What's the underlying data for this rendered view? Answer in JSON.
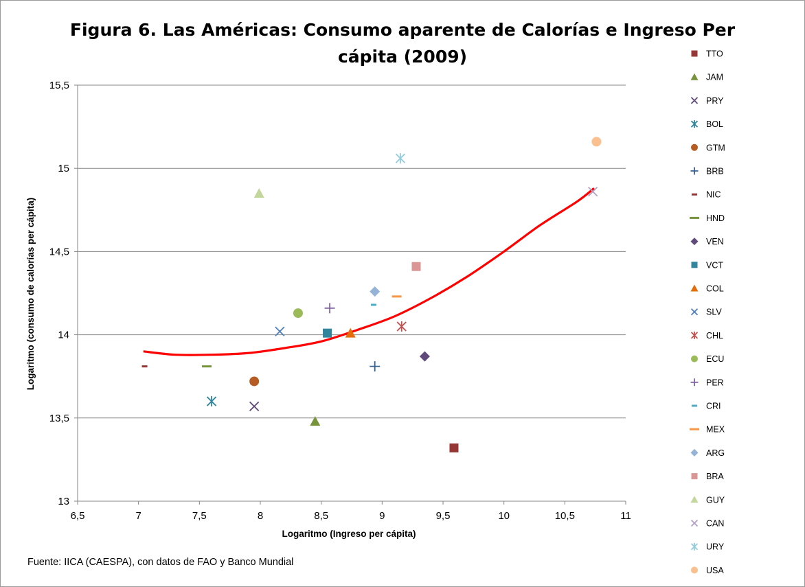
{
  "chart_data": {
    "type": "scatter",
    "title": "Figura 6. Las Américas: Consumo aparente de Calorías e Ingreso Per cápita (2009)",
    "title_lines": [
      "Figura 6. Las Américas: Consumo aparente de Calorías e Ingreso Per",
      "cápita (2009)"
    ],
    "xlabel": "Logaritmo  (Ingreso per cápita)",
    "ylabel": "Logaritmo (consumo de calorías per cápita)",
    "xlim": [
      6.5,
      11
    ],
    "ylim": [
      13,
      15.5
    ],
    "x_ticks": [
      6.5,
      7,
      7.5,
      8,
      8.5,
      9,
      9.5,
      10,
      10.5,
      11
    ],
    "x_tick_labels": [
      "6,5",
      "7",
      "7,5",
      "8",
      "8,5",
      "9",
      "9,5",
      "10",
      "10,5",
      "11"
    ],
    "y_ticks": [
      13,
      13.5,
      14,
      14.5,
      15,
      15.5
    ],
    "y_tick_labels": [
      "13",
      "13,5",
      "14",
      "14,5",
      "15",
      "15,5"
    ],
    "grid": "horizontal",
    "legend_position": "right",
    "source": "Fuente: IICA (CAESPA), con datos de FAO y Banco Mundial",
    "trendline": {
      "type": "polynomial",
      "color": "#ff0000",
      "points": [
        [
          7.04,
          13.9
        ],
        [
          7.3,
          13.88
        ],
        [
          7.6,
          13.88
        ],
        [
          7.9,
          13.89
        ],
        [
          8.2,
          13.92
        ],
        [
          8.5,
          13.96
        ],
        [
          8.8,
          14.03
        ],
        [
          9.1,
          14.11
        ],
        [
          9.4,
          14.22
        ],
        [
          9.7,
          14.35
        ],
        [
          10.0,
          14.5
        ],
        [
          10.3,
          14.66
        ],
        [
          10.6,
          14.8
        ],
        [
          10.74,
          14.88
        ]
      ]
    },
    "series": [
      {
        "name": "TTO",
        "marker": "square",
        "color": "#953735",
        "x": 9.59,
        "y": 13.32
      },
      {
        "name": "JAM",
        "marker": "triangle",
        "color": "#77933c",
        "x": 8.45,
        "y": 13.48
      },
      {
        "name": "PRY",
        "marker": "x",
        "color": "#604a7b",
        "x": 7.95,
        "y": 13.57
      },
      {
        "name": "BOL",
        "marker": "star",
        "color": "#31859c",
        "x": 7.6,
        "y": 13.6
      },
      {
        "name": "GTM",
        "marker": "circle",
        "color": "#b65c22",
        "x": 7.95,
        "y": 13.72
      },
      {
        "name": "BRB",
        "marker": "plus",
        "color": "#376092",
        "x": 8.94,
        "y": 13.81
      },
      {
        "name": "NIC",
        "marker": "dash-short",
        "color": "#953735",
        "x": 7.05,
        "y": 13.81
      },
      {
        "name": "HND",
        "marker": "dash",
        "color": "#77933c",
        "x": 7.56,
        "y": 13.81
      },
      {
        "name": "VEN",
        "marker": "diamond",
        "color": "#604a7b",
        "x": 9.35,
        "y": 13.87
      },
      {
        "name": "VCT",
        "marker": "square",
        "color": "#31859c",
        "x": 8.55,
        "y": 14.01
      },
      {
        "name": "COL",
        "marker": "triangle",
        "color": "#e46c0a",
        "x": 8.74,
        "y": 14.01
      },
      {
        "name": "SLV",
        "marker": "x",
        "color": "#4f81bd",
        "x": 8.16,
        "y": 14.02
      },
      {
        "name": "CHL",
        "marker": "star",
        "color": "#c0504d",
        "x": 9.16,
        "y": 14.05
      },
      {
        "name": "ECU",
        "marker": "circle",
        "color": "#9bbb59",
        "x": 8.31,
        "y": 14.13
      },
      {
        "name": "PER",
        "marker": "plus",
        "color": "#8064a2",
        "x": 8.57,
        "y": 14.16
      },
      {
        "name": "CRI",
        "marker": "dash-short",
        "color": "#4bacc6",
        "x": 8.93,
        "y": 14.18
      },
      {
        "name": "MEX",
        "marker": "dash",
        "color": "#f79646",
        "x": 9.12,
        "y": 14.23
      },
      {
        "name": "ARG",
        "marker": "diamond",
        "color": "#95b3d7",
        "x": 8.94,
        "y": 14.26
      },
      {
        "name": "BRA",
        "marker": "square",
        "color": "#d99694",
        "x": 9.28,
        "y": 14.41
      },
      {
        "name": "GUY",
        "marker": "triangle",
        "color": "#c3d69b",
        "x": 7.99,
        "y": 14.85
      },
      {
        "name": "CAN",
        "marker": "x",
        "color": "#b3a2c7",
        "x": 10.73,
        "y": 14.86
      },
      {
        "name": "URY",
        "marker": "star",
        "color": "#93cddd",
        "x": 9.15,
        "y": 15.06
      },
      {
        "name": "USA",
        "marker": "circle",
        "color": "#fac090",
        "x": 10.76,
        "y": 15.16
      }
    ]
  }
}
